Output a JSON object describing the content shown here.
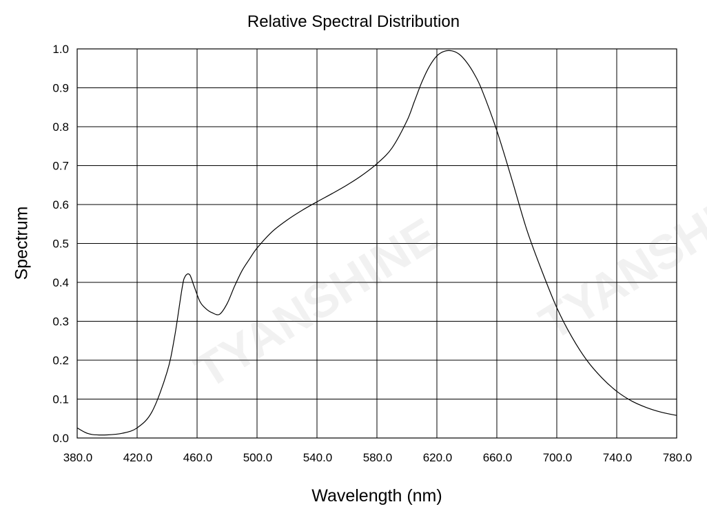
{
  "chart_data": {
    "type": "line",
    "title": "Relative Spectral Distribution",
    "xlabel": "Wavelength (nm)",
    "ylabel": "Spectrum",
    "xlim": [
      380,
      780
    ],
    "ylim": [
      0,
      1.0
    ],
    "x_ticks": [
      "380.0",
      "420.0",
      "460.0",
      "500.0",
      "540.0",
      "580.0",
      "620.0",
      "660.0",
      "700.0",
      "740.0",
      "780.0"
    ],
    "y_ticks": [
      "0.0",
      "0.1",
      "0.2",
      "0.3",
      "0.4",
      "0.5",
      "0.6",
      "0.7",
      "0.8",
      "0.9",
      "1.0"
    ],
    "grid": true,
    "series": [
      {
        "x": [
          380,
          385,
          390,
          400,
          410,
          420,
          430,
          440,
          445,
          450,
          452,
          455,
          458,
          462,
          466,
          470,
          475,
          480,
          485,
          490,
          495,
          500,
          510,
          520,
          530,
          540,
          550,
          560,
          570,
          580,
          590,
          600,
          605,
          610,
          615,
          620,
          625,
          630,
          635,
          640,
          645,
          650,
          660,
          670,
          680,
          690,
          700,
          710,
          720,
          730,
          740,
          750,
          760,
          770,
          780
        ],
        "y": [
          0.026,
          0.015,
          0.009,
          0.008,
          0.012,
          0.026,
          0.068,
          0.17,
          0.26,
          0.385,
          0.415,
          0.42,
          0.39,
          0.35,
          0.332,
          0.322,
          0.318,
          0.345,
          0.39,
          0.43,
          0.46,
          0.488,
          0.53,
          0.56,
          0.585,
          0.607,
          0.628,
          0.65,
          0.675,
          0.705,
          0.745,
          0.815,
          0.865,
          0.915,
          0.955,
          0.982,
          0.994,
          0.995,
          0.986,
          0.965,
          0.935,
          0.895,
          0.79,
          0.665,
          0.535,
          0.43,
          0.335,
          0.26,
          0.2,
          0.155,
          0.12,
          0.095,
          0.078,
          0.066,
          0.058
        ]
      }
    ]
  },
  "watermarks": [
    "TYANSHINE",
    "TYANSHINE"
  ]
}
